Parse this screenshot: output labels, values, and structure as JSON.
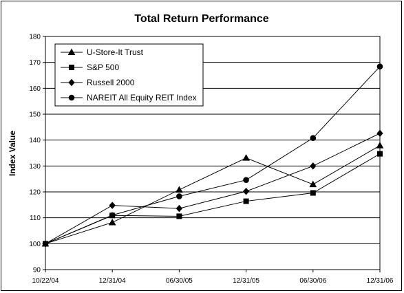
{
  "chart_data": {
    "type": "line",
    "title": "Total Return Performance",
    "xlabel": "",
    "ylabel": "Index Value",
    "categories": [
      "10/22/04",
      "12/31/04",
      "06/30/05",
      "12/31/05",
      "06/30/06",
      "12/31/06"
    ],
    "ylim": [
      90,
      180
    ],
    "yticks": [
      90,
      100,
      110,
      120,
      130,
      140,
      150,
      160,
      170,
      180
    ],
    "grid": "horizontal",
    "legend_position": "top-left",
    "series": [
      {
        "name": "U-Store-It Trust",
        "marker": "triangle",
        "values": [
          100,
          108.2,
          120.8,
          133.1,
          122.9,
          137.9
        ]
      },
      {
        "name": "S&P 500",
        "marker": "square",
        "values": [
          100,
          110.9,
          110.6,
          116.4,
          119.6,
          134.7
        ]
      },
      {
        "name": "Russell 2000",
        "marker": "diamond",
        "values": [
          100,
          114.8,
          113.6,
          120.2,
          130.0,
          142.6
        ]
      },
      {
        "name": "NAREIT All Equity REIT Index",
        "marker": "circle",
        "values": [
          100,
          111.0,
          118.3,
          124.6,
          140.8,
          168.4
        ]
      }
    ]
  }
}
